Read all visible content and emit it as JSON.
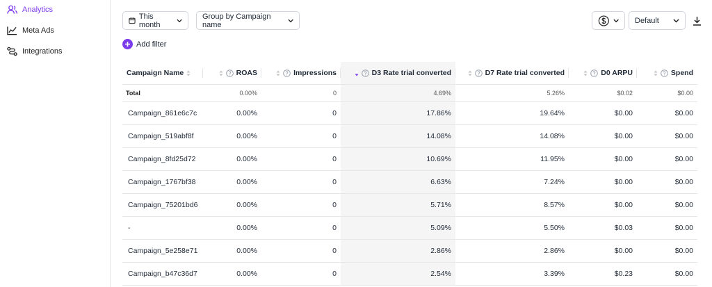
{
  "sidebar": {
    "items": [
      "Analytics",
      "Meta Ads",
      "Integrations"
    ]
  },
  "toolbar": {
    "period": "This month",
    "group_by": "Group by Campaign name",
    "view": "Default",
    "add_filter": "Add filter"
  },
  "table": {
    "columns": [
      "Campaign Name",
      "ROAS",
      "Impressions",
      "D3 Rate trial converted",
      "D7 Rate trial converted",
      "D0 ARPU",
      "Spend"
    ],
    "total": [
      "Total",
      "0.00%",
      "0",
      "4.69%",
      "5.26%",
      "$0.02",
      "$0.00"
    ],
    "rows": [
      [
        "Campaign_861e6c7c",
        "0.00%",
        "0",
        "17.86%",
        "19.64%",
        "$0.00",
        "$0.00"
      ],
      [
        "Campaign_519abf8f",
        "0.00%",
        "0",
        "14.08%",
        "14.08%",
        "$0.00",
        "$0.00"
      ],
      [
        "Campaign_8fd25d72",
        "0.00%",
        "0",
        "10.69%",
        "11.95%",
        "$0.00",
        "$0.00"
      ],
      [
        "Campaign_1767bf38",
        "0.00%",
        "0",
        "6.63%",
        "7.24%",
        "$0.00",
        "$0.00"
      ],
      [
        "Campaign_75201bd6",
        "0.00%",
        "0",
        "5.71%",
        "8.57%",
        "$0.00",
        "$0.00"
      ],
      [
        "-",
        "0.00%",
        "0",
        "5.09%",
        "5.50%",
        "$0.03",
        "$0.00"
      ],
      [
        "Campaign_5e258e71",
        "0.00%",
        "0",
        "2.86%",
        "2.86%",
        "$0.00",
        "$0.00"
      ],
      [
        "Campaign_b47c36d7",
        "0.00%",
        "0",
        "2.54%",
        "3.39%",
        "$0.23",
        "$0.00"
      ]
    ]
  }
}
